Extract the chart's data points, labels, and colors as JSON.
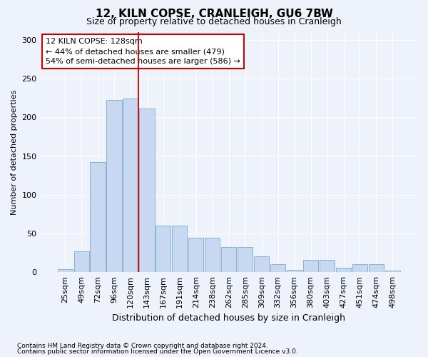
{
  "title": "12, KILN COPSE, CRANLEIGH, GU6 7BW",
  "subtitle": "Size of property relative to detached houses in Cranleigh",
  "xlabel": "Distribution of detached houses by size in Cranleigh",
  "ylabel": "Number of detached properties",
  "footnote1": "Contains HM Land Registry data © Crown copyright and database right 2024.",
  "footnote2": "Contains public sector information licensed under the Open Government Licence v3.0.",
  "annotation_line1": "12 KILN COPSE: 128sqm",
  "annotation_line2": "← 44% of detached houses are smaller (479)",
  "annotation_line3": "54% of semi-detached houses are larger (586) →",
  "categories": [
    "25sqm",
    "49sqm",
    "72sqm",
    "96sqm",
    "120sqm",
    "143sqm",
    "167sqm",
    "191sqm",
    "214sqm",
    "238sqm",
    "262sqm",
    "285sqm",
    "309sqm",
    "332sqm",
    "356sqm",
    "380sqm",
    "403sqm",
    "427sqm",
    "451sqm",
    "474sqm",
    "498sqm"
  ],
  "values": [
    4,
    27,
    142,
    222,
    224,
    211,
    60,
    60,
    44,
    44,
    32,
    32,
    20,
    10,
    3,
    16,
    16,
    6,
    10,
    10,
    2
  ],
  "bar_color": "#c8d8f0",
  "bar_edge_color": "#7aaad0",
  "marker_color": "#cc0000",
  "marker_bin_index": 4,
  "ylim": [
    0,
    310
  ],
  "yticks": [
    0,
    50,
    100,
    150,
    200,
    250,
    300
  ],
  "background_color": "#eef2fa",
  "grid_color": "#ffffff",
  "annotation_box_facecolor": "#ffffff",
  "annotation_box_edgecolor": "#cc0000",
  "title_fontsize": 11,
  "subtitle_fontsize": 9,
  "ylabel_fontsize": 8,
  "xlabel_fontsize": 9,
  "tick_fontsize": 8,
  "annotation_fontsize": 8,
  "footnote_fontsize": 6.5
}
